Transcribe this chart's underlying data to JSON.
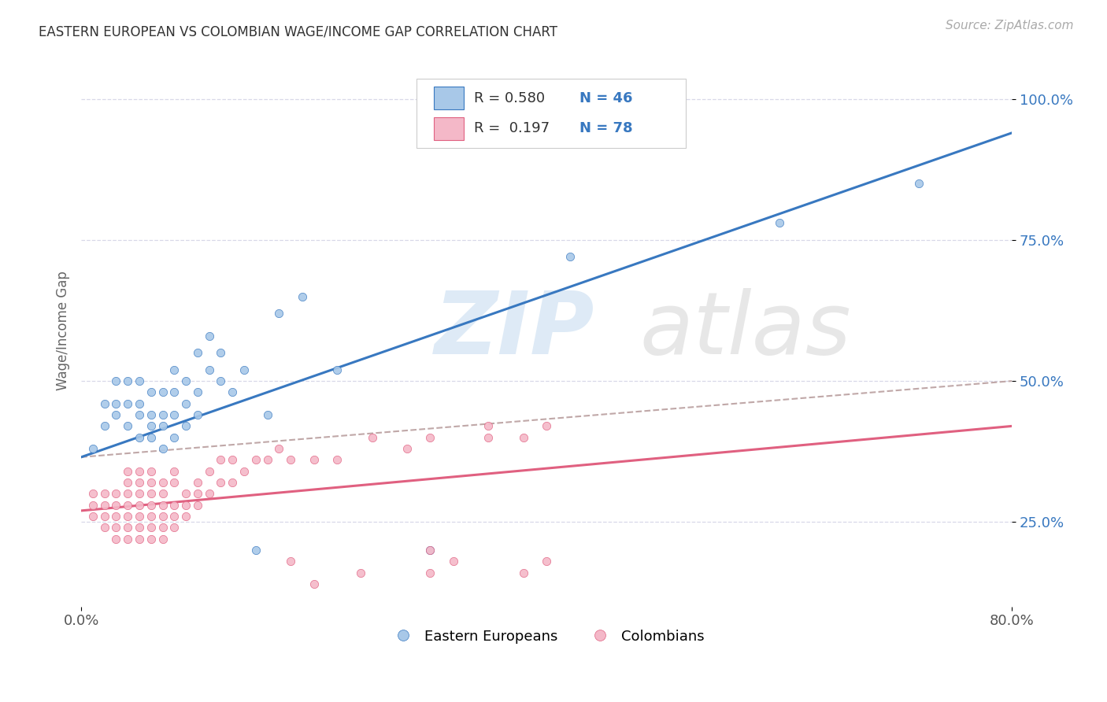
{
  "title": "EASTERN EUROPEAN VS COLOMBIAN WAGE/INCOME GAP CORRELATION CHART",
  "source": "Source: ZipAtlas.com",
  "ylabel": "Wage/Income Gap",
  "xlim": [
    0.0,
    0.8
  ],
  "ylim": [
    0.1,
    1.08
  ],
  "y_ticks": [
    0.25,
    0.5,
    0.75,
    1.0
  ],
  "y_tick_labels": [
    "25.0%",
    "50.0%",
    "75.0%",
    "100.0%"
  ],
  "blue_color": "#a8c8e8",
  "pink_color": "#f4b8c8",
  "blue_line_color": "#3878c0",
  "pink_line_color": "#e06080",
  "gray_dash_color": "#c0a8a8",
  "grid_color": "#d8d8e8",
  "blue_trend": [
    0.0,
    0.8,
    0.365,
    0.94
  ],
  "pink_trend": [
    0.0,
    0.8,
    0.27,
    0.42
  ],
  "gray_trend": [
    0.0,
    0.8,
    0.365,
    0.5
  ],
  "blue_scatter_x": [
    0.01,
    0.02,
    0.02,
    0.03,
    0.03,
    0.03,
    0.04,
    0.04,
    0.04,
    0.05,
    0.05,
    0.05,
    0.05,
    0.06,
    0.06,
    0.06,
    0.06,
    0.07,
    0.07,
    0.07,
    0.07,
    0.08,
    0.08,
    0.08,
    0.08,
    0.09,
    0.09,
    0.09,
    0.1,
    0.1,
    0.1,
    0.11,
    0.11,
    0.12,
    0.12,
    0.13,
    0.14,
    0.15,
    0.16,
    0.17,
    0.19,
    0.22,
    0.3,
    0.42,
    0.6,
    0.72
  ],
  "blue_scatter_y": [
    0.38,
    0.42,
    0.46,
    0.44,
    0.46,
    0.5,
    0.42,
    0.46,
    0.5,
    0.4,
    0.44,
    0.46,
    0.5,
    0.4,
    0.42,
    0.44,
    0.48,
    0.38,
    0.42,
    0.44,
    0.48,
    0.4,
    0.44,
    0.48,
    0.52,
    0.42,
    0.46,
    0.5,
    0.44,
    0.48,
    0.55,
    0.52,
    0.58,
    0.5,
    0.55,
    0.48,
    0.52,
    0.2,
    0.44,
    0.62,
    0.65,
    0.52,
    0.2,
    0.72,
    0.78,
    0.85
  ],
  "pink_scatter_x": [
    0.01,
    0.01,
    0.01,
    0.02,
    0.02,
    0.02,
    0.02,
    0.03,
    0.03,
    0.03,
    0.03,
    0.03,
    0.04,
    0.04,
    0.04,
    0.04,
    0.04,
    0.04,
    0.04,
    0.05,
    0.05,
    0.05,
    0.05,
    0.05,
    0.05,
    0.05,
    0.06,
    0.06,
    0.06,
    0.06,
    0.06,
    0.06,
    0.06,
    0.07,
    0.07,
    0.07,
    0.07,
    0.07,
    0.07,
    0.08,
    0.08,
    0.08,
    0.08,
    0.08,
    0.09,
    0.09,
    0.09,
    0.1,
    0.1,
    0.1,
    0.11,
    0.11,
    0.12,
    0.12,
    0.13,
    0.13,
    0.14,
    0.15,
    0.16,
    0.17,
    0.18,
    0.2,
    0.2,
    0.22,
    0.25,
    0.28,
    0.3,
    0.3,
    0.32,
    0.35,
    0.38,
    0.38,
    0.4,
    0.4,
    0.35,
    0.3,
    0.24,
    0.18
  ],
  "pink_scatter_y": [
    0.26,
    0.28,
    0.3,
    0.24,
    0.26,
    0.28,
    0.3,
    0.22,
    0.24,
    0.26,
    0.28,
    0.3,
    0.22,
    0.24,
    0.26,
    0.28,
    0.3,
    0.32,
    0.34,
    0.22,
    0.24,
    0.26,
    0.28,
    0.3,
    0.32,
    0.34,
    0.22,
    0.24,
    0.26,
    0.28,
    0.3,
    0.32,
    0.34,
    0.22,
    0.24,
    0.26,
    0.28,
    0.3,
    0.32,
    0.24,
    0.26,
    0.28,
    0.32,
    0.34,
    0.26,
    0.28,
    0.3,
    0.28,
    0.3,
    0.32,
    0.3,
    0.34,
    0.32,
    0.36,
    0.32,
    0.36,
    0.34,
    0.36,
    0.36,
    0.38,
    0.36,
    0.36,
    0.14,
    0.36,
    0.4,
    0.38,
    0.4,
    0.16,
    0.18,
    0.4,
    0.4,
    0.16,
    0.42,
    0.18,
    0.42,
    0.2,
    0.16,
    0.18
  ]
}
